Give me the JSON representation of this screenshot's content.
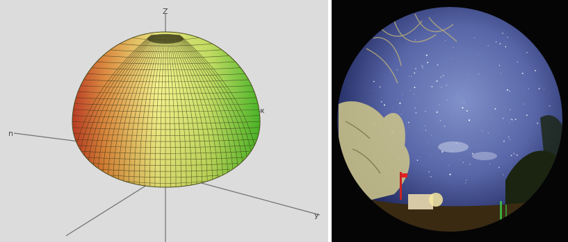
{
  "left_figure": {
    "axis_labels": {
      "top": "Z",
      "right": "x",
      "left": "n",
      "bottom_right": "y"
    },
    "colors": {
      "background": "#dcdcdc",
      "grid_line": "#3a3a14",
      "axis_line": "#6a6a6a",
      "gradient_left": "#d8402a",
      "gradient_mid": "#f4f07a",
      "gradient_right": "#44cc22"
    }
  },
  "right_figure": {
    "colors": {
      "background": "#050505",
      "sky_center": "#6f7fbe",
      "sky_edge": "#2a356f",
      "tree": "#c9c28a",
      "ground": "#3a2a10"
    }
  }
}
